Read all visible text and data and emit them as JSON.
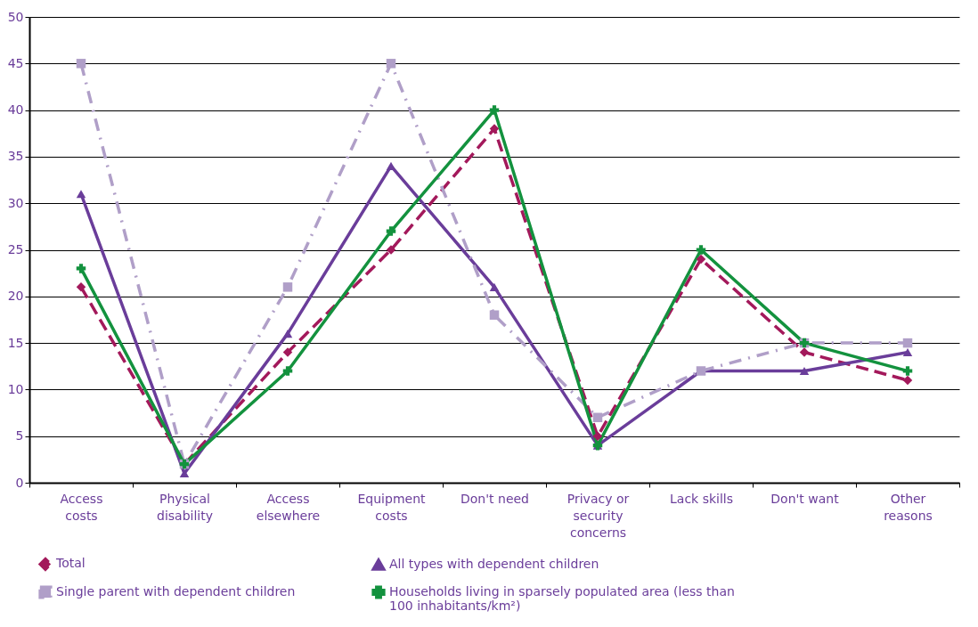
{
  "chart_data": {
    "type": "line",
    "categories": [
      "Access costs",
      "Physical disability",
      "Access elsewhere",
      "Equipment costs",
      "Don't need",
      "Privacy or security concerns",
      "Lack skills",
      "Don't want",
      "Other reasons"
    ],
    "series": [
      {
        "name": "Total",
        "color": "#a3195b",
        "line_style": "dashed",
        "marker": "diamond",
        "values": [
          21,
          2,
          14,
          25,
          38,
          5,
          24,
          14,
          11
        ]
      },
      {
        "name": "All types with dependent children",
        "color": "#6a3d9a",
        "line_style": "solid",
        "marker": "triangle",
        "values": [
          31,
          1,
          16,
          34,
          21,
          4,
          12,
          12,
          14
        ]
      },
      {
        "name": "Single parent with dependent children",
        "color": "#b09fc8",
        "line_style": "dotted",
        "marker": "square",
        "values": [
          45,
          2,
          21,
          45,
          18,
          7,
          12,
          15,
          15
        ]
      },
      {
        "name": "Households living in sparsely populated area (less than 100 inhabitants/km²)",
        "color": "#13923e",
        "line_style": "solid",
        "marker": "cross",
        "values": [
          23,
          2,
          12,
          27,
          40,
          4,
          25,
          15,
          12
        ]
      }
    ],
    "ylim": [
      0,
      50
    ],
    "yticks": [
      0,
      5,
      10,
      15,
      20,
      25,
      30,
      35,
      40,
      45,
      50
    ],
    "grid": "y",
    "legend": "bottom"
  }
}
